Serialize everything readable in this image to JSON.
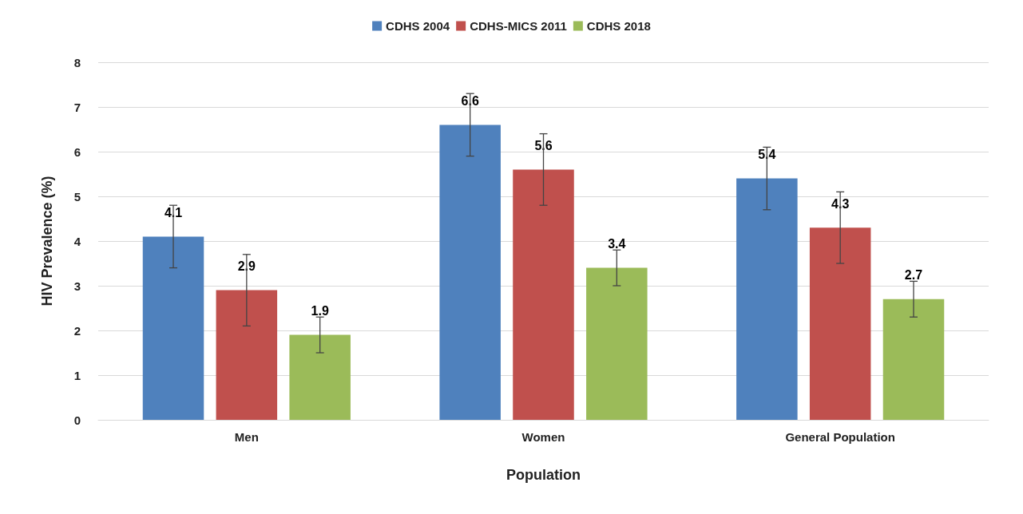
{
  "chart_data": {
    "type": "bar",
    "xlabel": "Population",
    "ylabel": "HIV Prevalence (%)",
    "categories": [
      "Men",
      "Women",
      "General Population"
    ],
    "series": [
      {
        "name": "CDHS 2004",
        "color": "#4f81bd",
        "values": [
          4.1,
          6.6,
          5.4
        ],
        "errors": [
          [
            3.4,
            4.8
          ],
          [
            5.9,
            7.3
          ],
          [
            4.7,
            6.1
          ]
        ]
      },
      {
        "name": "CDHS-MICS 2011",
        "color": "#c0504d",
        "values": [
          2.9,
          5.6,
          4.3
        ],
        "errors": [
          [
            2.1,
            3.7
          ],
          [
            4.8,
            6.4
          ],
          [
            3.5,
            5.1
          ]
        ]
      },
      {
        "name": "CDHS 2018",
        "color": "#9bbb59",
        "values": [
          1.9,
          3.4,
          2.7
        ],
        "errors": [
          [
            1.5,
            2.3
          ],
          [
            3.0,
            3.8
          ],
          [
            2.3,
            3.1
          ]
        ]
      }
    ],
    "ylim": [
      0,
      8
    ],
    "yticks": [
      0,
      1,
      2,
      3,
      4,
      5,
      6,
      7,
      8
    ],
    "grid": "y",
    "legend": "top",
    "data_labels": true
  }
}
